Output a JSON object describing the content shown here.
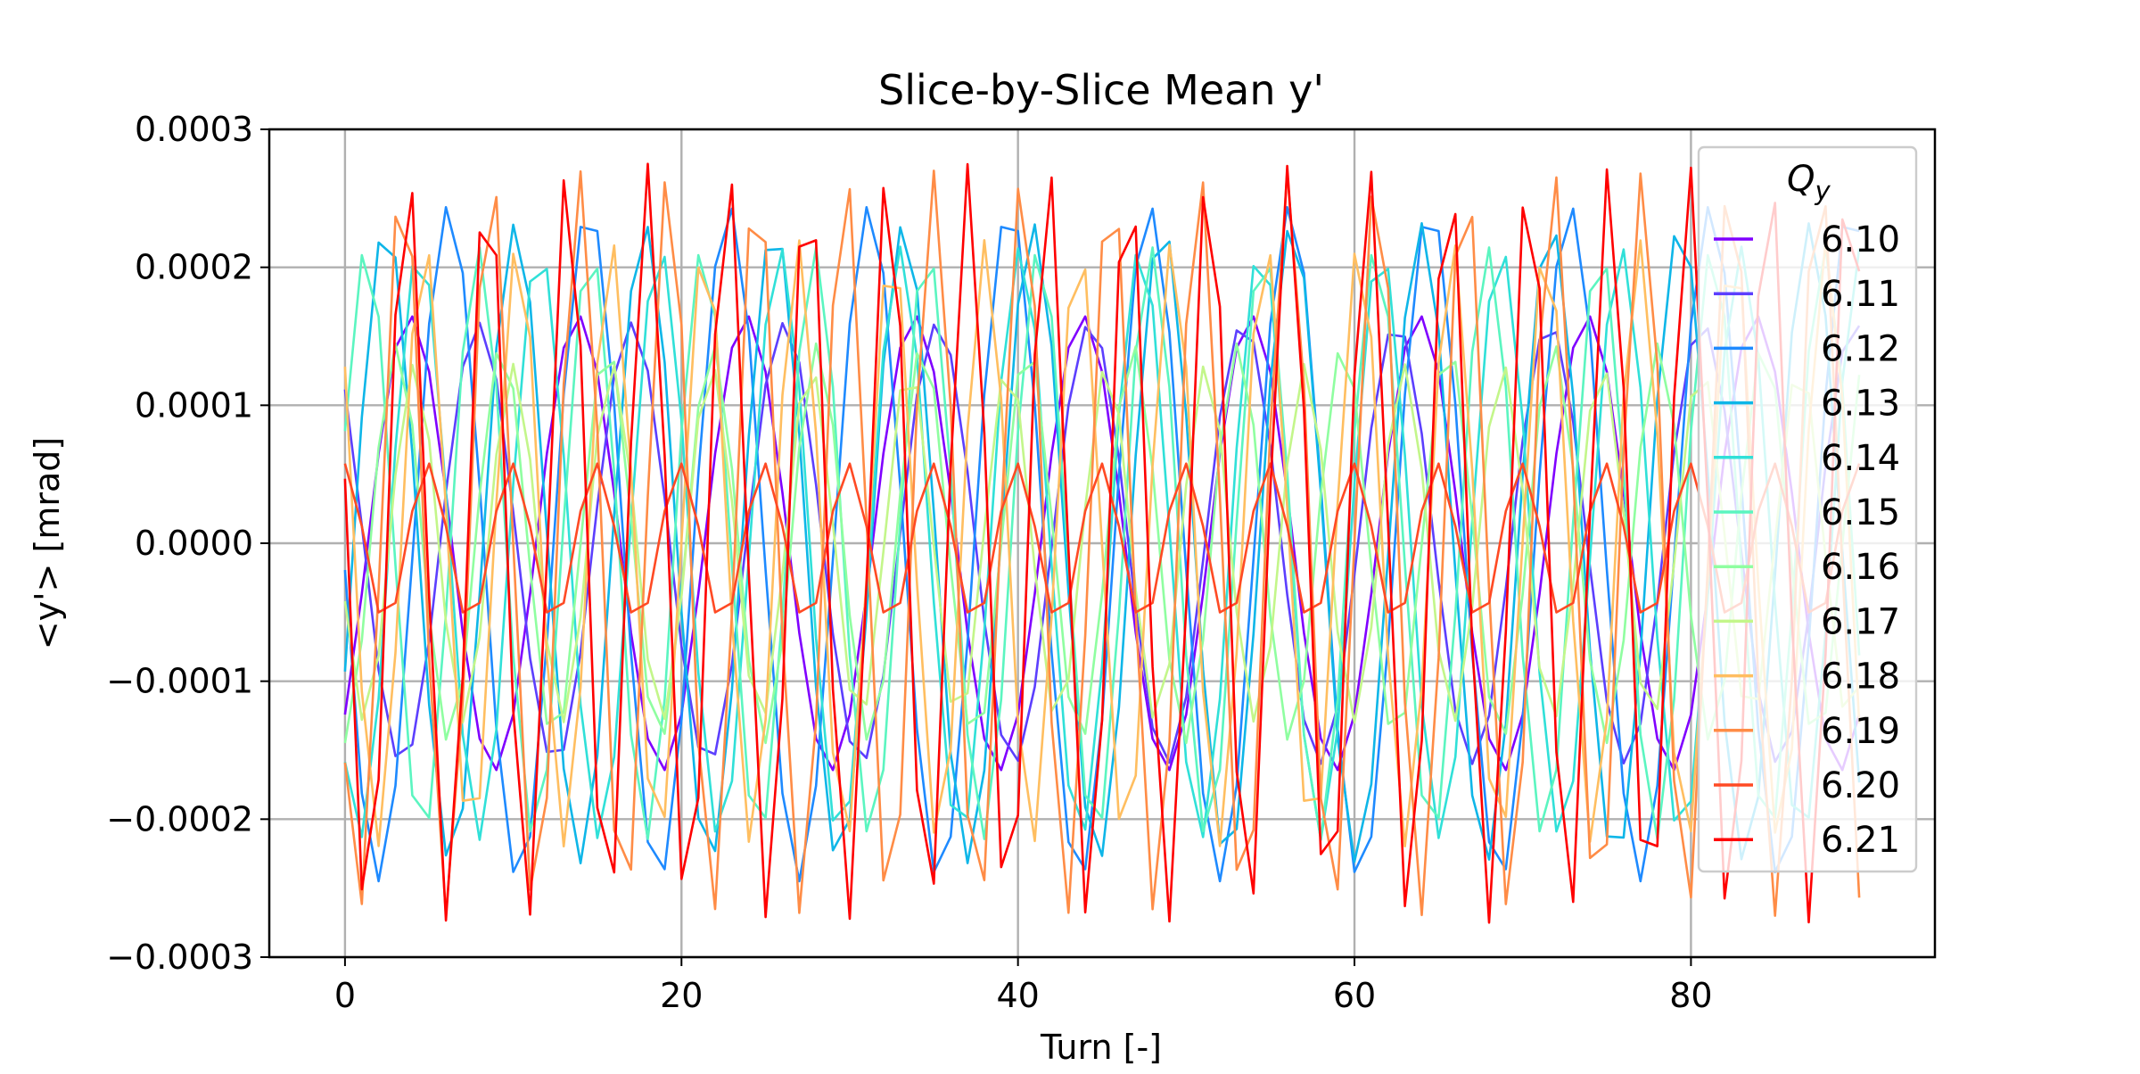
{
  "chart_data": {
    "type": "line",
    "title": "Slice-by-Slice Mean y'",
    "xlabel": "Turn [-]",
    "ylabel": "<y'> [mrad]",
    "xlim": [
      -4.5,
      94.5
    ],
    "ylim": [
      -0.0003,
      0.0003
    ],
    "xticks": [
      0,
      20,
      40,
      60,
      80
    ],
    "xtick_labels": [
      "0",
      "20",
      "40",
      "60",
      "80"
    ],
    "yticks": [
      -0.0003,
      -0.0002,
      -0.0001,
      0.0,
      0.0001,
      0.0002,
      0.0003
    ],
    "ytick_labels": [
      "−0.0003",
      "−0.0002",
      "−0.0001",
      "0.0000",
      "0.0001",
      "0.0002",
      "0.0003"
    ],
    "grid": true,
    "legend": {
      "title": "Q_y",
      "title_main": "Q",
      "title_sub": "y",
      "position": "top-right"
    },
    "turns": {
      "start": 0,
      "end": 90,
      "step": 1
    },
    "series": [
      {
        "name": "6.10",
        "color": "#8000ff",
        "amplitude": 0.000165,
        "tune": 6.1,
        "phase": 3.86
      },
      {
        "name": "6.11",
        "color": "#5c3ffe",
        "amplitude": 0.00016,
        "tune": 6.11,
        "phase": 0.8
      },
      {
        "name": "6.12",
        "color": "#1e8aff",
        "amplitude": 0.000245,
        "tune": 6.12,
        "phase": 1.65
      },
      {
        "name": "6.13",
        "color": "#0eb6e8",
        "amplitude": 0.000232,
        "tune": 6.13,
        "phase": 4.3
      },
      {
        "name": "6.14",
        "color": "#30e0d8",
        "amplitude": 0.000215,
        "tune": 6.14,
        "phase": 2.4
      },
      {
        "name": "6.15",
        "color": "#5bf5c0",
        "amplitude": 0.000215,
        "tune": 6.15,
        "phase": 5.1
      },
      {
        "name": "6.16",
        "color": "#8ffea0",
        "amplitude": 0.000145,
        "tune": 6.16,
        "phase": 3.2
      },
      {
        "name": "6.17",
        "color": "#c3f68a",
        "amplitude": 0.00013,
        "tune": 6.17,
        "phase": 1.9
      },
      {
        "name": "6.18",
        "color": "#ffbe60",
        "amplitude": 0.00022,
        "tune": 6.18,
        "phase": 0.95
      },
      {
        "name": "6.19",
        "color": "#ff8c46",
        "amplitude": 0.00027,
        "tune": 6.19,
        "phase": 2.2
      },
      {
        "name": "6.20",
        "color": "#ff4a24",
        "amplitude": 5.8e-05,
        "tune": 6.2,
        "phase": 0.1
      },
      {
        "name": "6.21",
        "color": "#ff0000",
        "amplitude": 0.000275,
        "tune": 6.21,
        "phase": 1.4
      }
    ]
  }
}
